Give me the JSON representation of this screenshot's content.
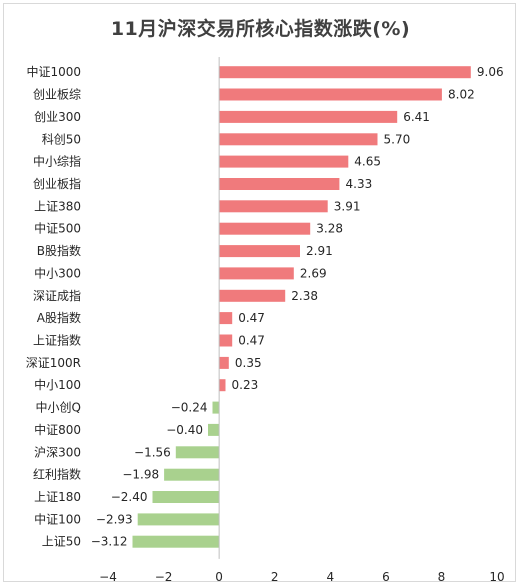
{
  "chart_data": {
    "type": "bar",
    "orientation": "horizontal",
    "title": "11月沪深交易所核心指数涨跌(%)",
    "categories": [
      "中证1000",
      "创业板综",
      "创业300",
      "科创50",
      "中小综指",
      "创业板指",
      "上证380",
      "中证500",
      "B股指数",
      "中小300",
      "深证成指",
      "A股指数",
      "上证指数",
      "深证100R",
      "中小100",
      "中小创Q",
      "中证800",
      "沪深300",
      "红利指数",
      "上证180",
      "中证100",
      "上证50"
    ],
    "values": [
      9.06,
      8.02,
      6.41,
      5.7,
      4.65,
      4.33,
      3.91,
      3.28,
      2.91,
      2.69,
      2.38,
      0.47,
      0.47,
      0.35,
      0.23,
      -0.24,
      -0.4,
      -1.56,
      -1.98,
      -2.4,
      -2.93,
      -3.12
    ],
    "value_labels": [
      "9.06",
      "8.02",
      "6.41",
      "5.70",
      "4.65",
      "4.33",
      "3.91",
      "3.28",
      "2.91",
      "2.69",
      "2.38",
      "0.47",
      "0.47",
      "0.35",
      "0.23",
      "−0.24",
      "−0.40",
      "−1.56",
      "−1.98",
      "−2.40",
      "−2.93",
      "−3.12"
    ],
    "xlim": [
      -4,
      10
    ],
    "xticks": [
      -4,
      -2,
      0,
      2,
      4,
      6,
      8,
      10
    ],
    "xtick_labels": [
      "−4",
      "−2",
      "0",
      "2",
      "4",
      "6",
      "8",
      "10"
    ],
    "grid": false,
    "colors": {
      "positive": "#f07a7c",
      "negative": "#a9d18e",
      "axis": "#bfbfbf"
    }
  }
}
